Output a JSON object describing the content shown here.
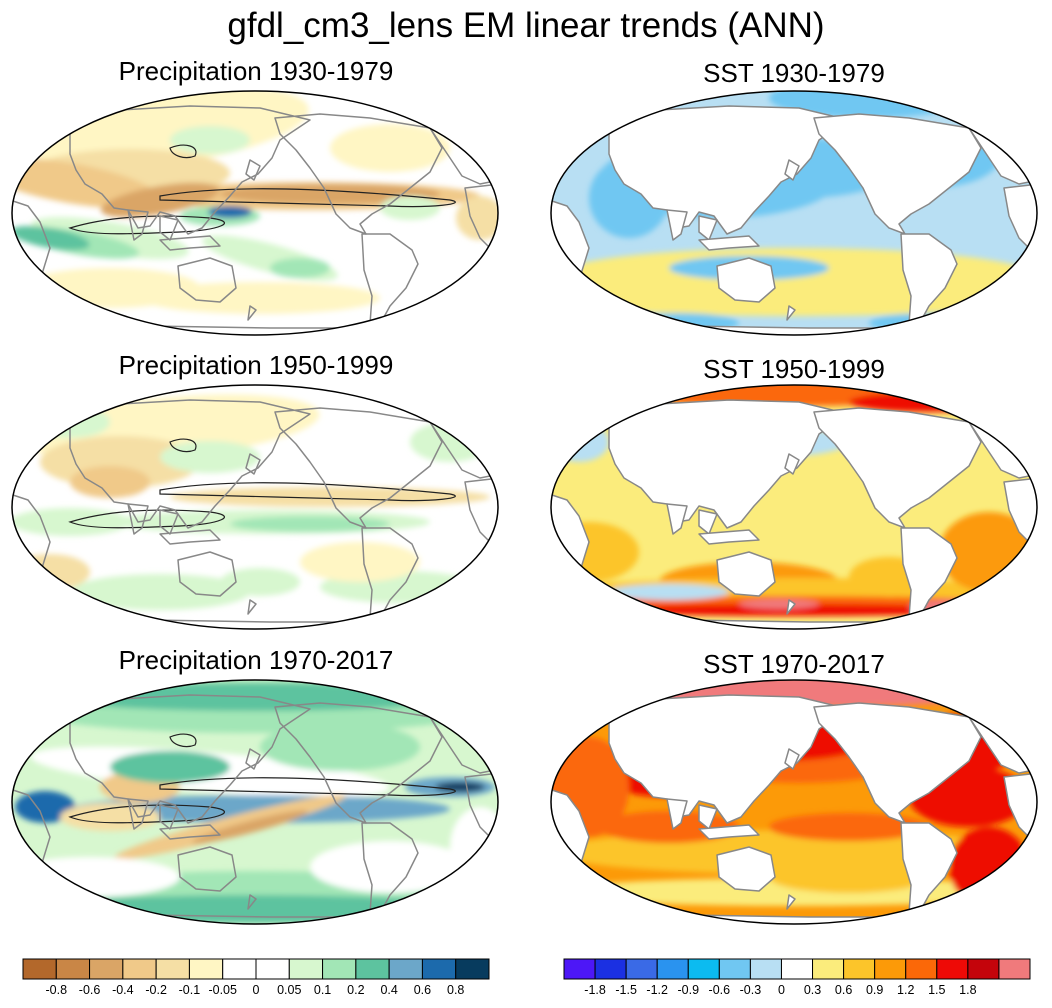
{
  "title": "gfdl_cm3_lens EM linear trends (ANN)",
  "panels": [
    {
      "title": "Precipitation 1930-1979",
      "variable": "precipitation",
      "pattern": "p1930"
    },
    {
      "title": "SST 1930-1979",
      "variable": "sst",
      "pattern": "s1930"
    },
    {
      "title": "Precipitation 1950-1999",
      "variable": "precipitation",
      "pattern": "p1950"
    },
    {
      "title": "SST 1950-1999",
      "variable": "sst",
      "pattern": "s1950"
    },
    {
      "title": "Precipitation 1970-2017",
      "variable": "precipitation",
      "pattern": "p1970"
    },
    {
      "title": "SST 1970-2017",
      "variable": "sst",
      "pattern": "s1970"
    }
  ],
  "colorbars": {
    "precipitation": {
      "colors": [
        "#b3682b",
        "#c98646",
        "#daa566",
        "#f0c989",
        "#f5dfa5",
        "#fff6c4",
        "#ffffff",
        "#ffffff",
        "#d7f7cf",
        "#a2e6b6",
        "#5dc39f",
        "#6ca7c9",
        "#1c6aac",
        "#073b5e"
      ],
      "labels": [
        "-0.8",
        "-0.6",
        "-0.4",
        "-0.2",
        "-0.1",
        "-0.05",
        "0",
        "0.05",
        "0.1",
        "0.2",
        "0.4",
        "0.6",
        "0.8"
      ]
    },
    "sst": {
      "colors": [
        "#4d17f7",
        "#1b30e2",
        "#3a6ae6",
        "#2a93ef",
        "#0cbbf0",
        "#70c7f2",
        "#b8dff3",
        "#ffffff",
        "#fbec7c",
        "#fcc52a",
        "#fc9a08",
        "#fb6808",
        "#ee0a06",
        "#c4040b",
        "#f07a7c"
      ],
      "labels": [
        "-1.8",
        "-1.5",
        "-1.2",
        "-0.9",
        "-0.6",
        "-0.3",
        "0",
        "0.3",
        "0.6",
        "0.9",
        "1.2",
        "1.5",
        "1.8"
      ]
    }
  }
}
